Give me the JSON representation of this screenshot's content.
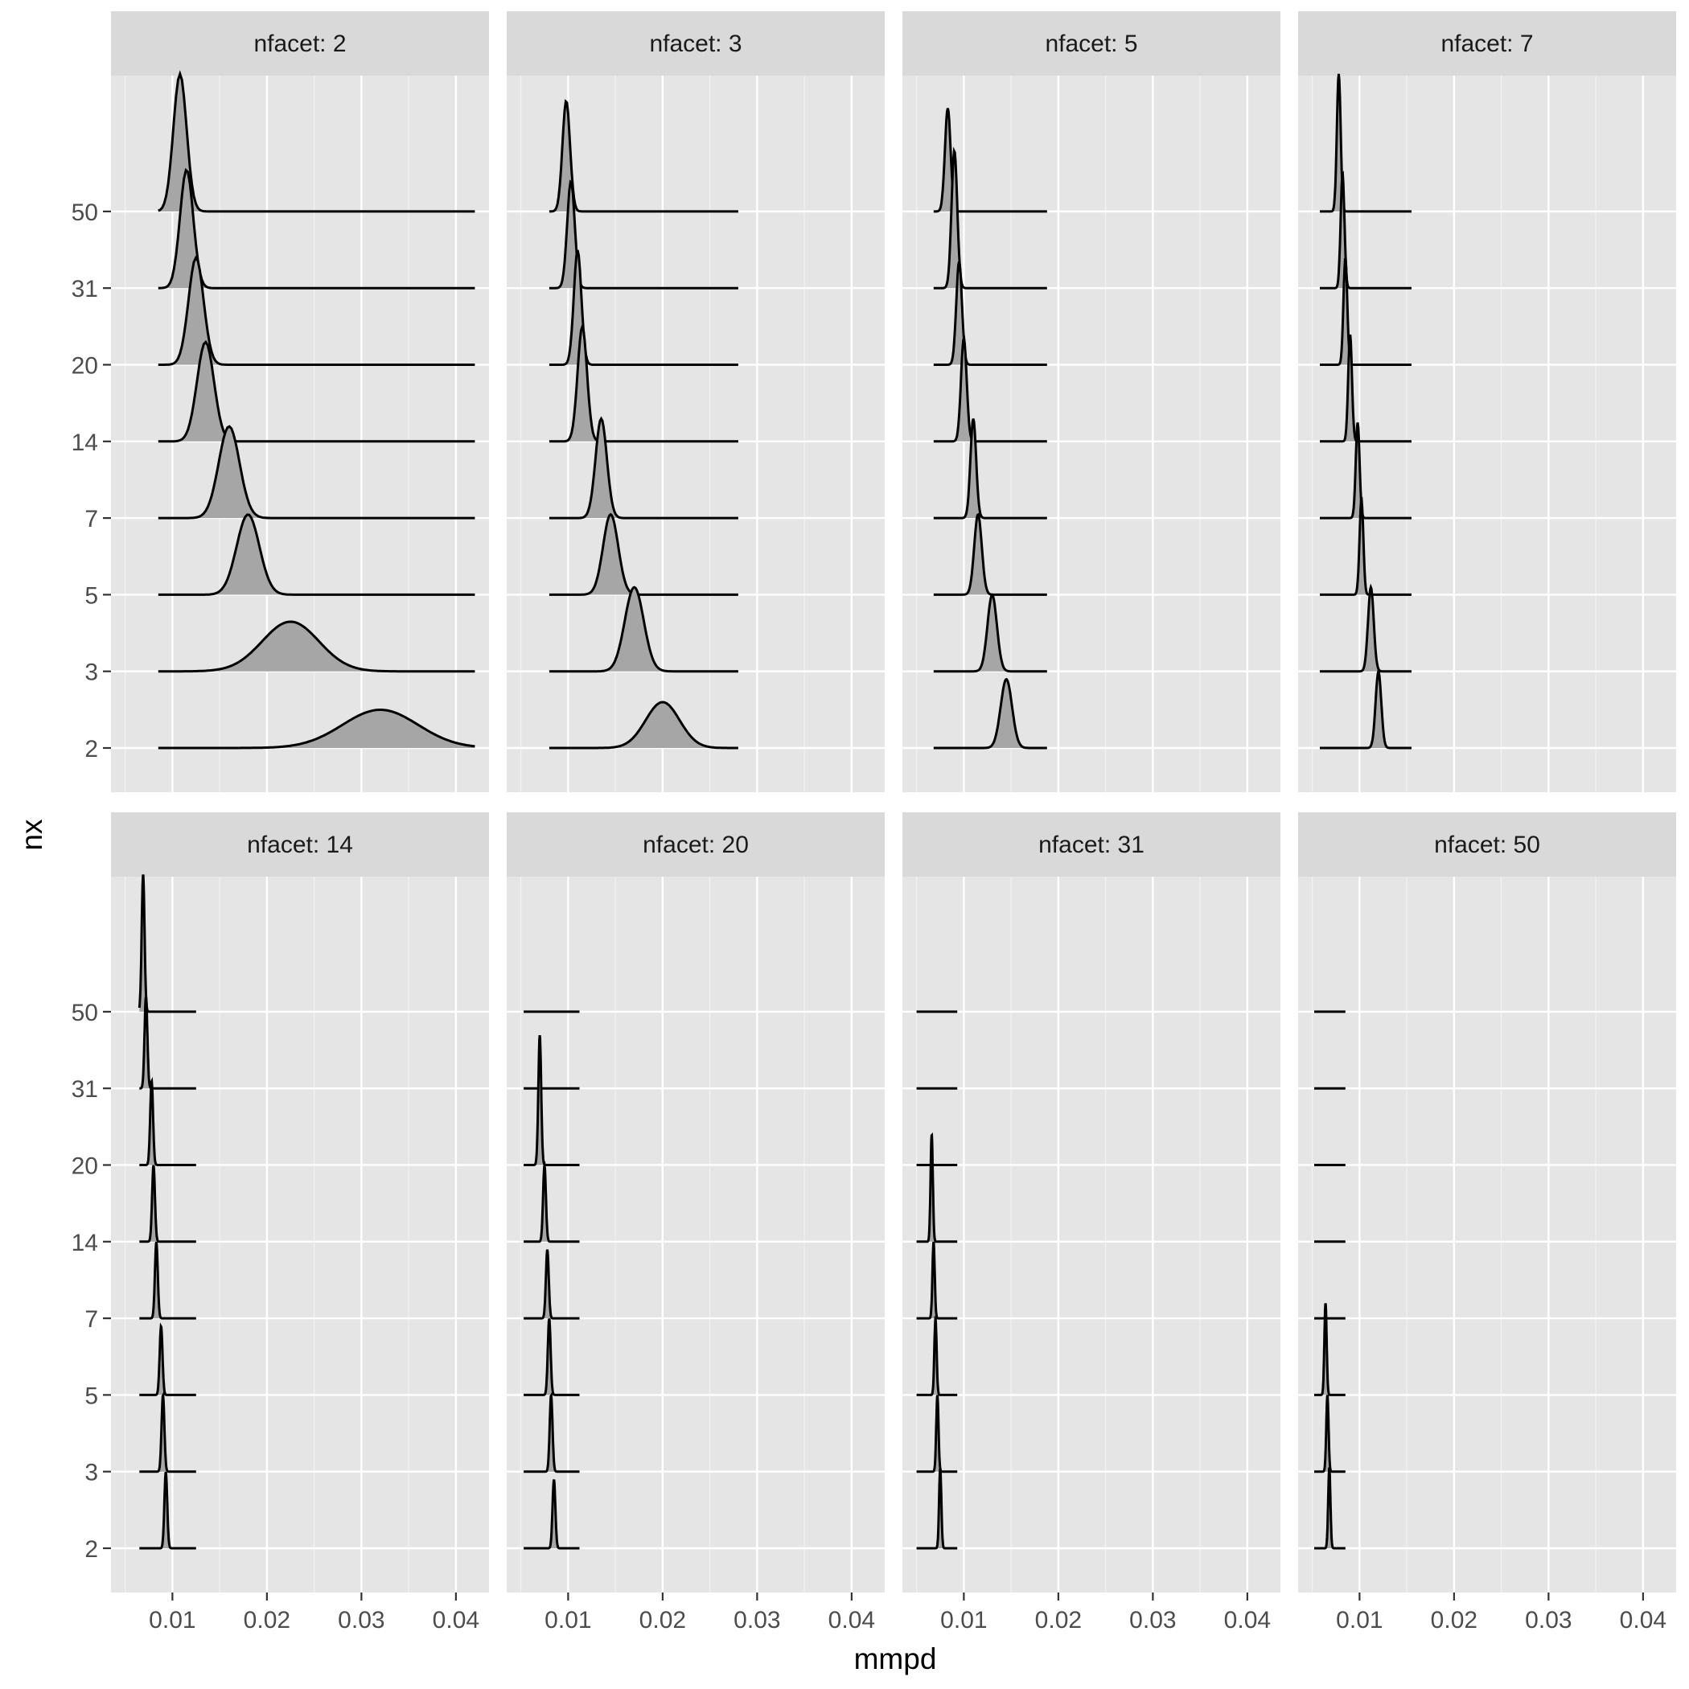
{
  "chart_data": {
    "type": "ridgeline",
    "facet_label_prefix": "nfacet: ",
    "xlabel": "mmpd",
    "ylabel": "nx",
    "xlim": [
      0.0035,
      0.0435
    ],
    "x_ticks": [
      0.01,
      0.02,
      0.03,
      0.04
    ],
    "x_tick_labels": [
      "0.01",
      "0.02",
      "0.03",
      "0.04"
    ],
    "y_levels": [
      "2",
      "3",
      "5",
      "7",
      "14",
      "20",
      "31",
      "50"
    ],
    "grid": true,
    "ridge_outline_color": "#000000",
    "ridge_fill_color": "#a6a6a6",
    "panel_background": "#e5e5e5",
    "strip_background": "#d9d9d9",
    "facets": [
      {
        "nfacet": "2",
        "range": [
          0.0085,
          0.042
        ],
        "ridges": [
          {
            "nx": "2",
            "peak": 0.032,
            "spread": 0.004,
            "height": 0.5,
            "opacity": 1
          },
          {
            "nx": "3",
            "peak": 0.0225,
            "spread": 0.003,
            "height": 0.65,
            "opacity": 1
          },
          {
            "nx": "5",
            "peak": 0.018,
            "spread": 0.0012,
            "height": 1.05,
            "opacity": 1
          },
          {
            "nx": "7",
            "peak": 0.016,
            "spread": 0.0011,
            "height": 1.2,
            "opacity": 1
          },
          {
            "nx": "14",
            "peak": 0.0135,
            "spread": 0.0009,
            "height": 1.3,
            "opacity": 1
          },
          {
            "nx": "20",
            "peak": 0.0125,
            "spread": 0.0008,
            "height": 1.4,
            "opacity": 1
          },
          {
            "nx": "31",
            "peak": 0.0115,
            "spread": 0.0007,
            "height": 1.55,
            "opacity": 1
          },
          {
            "nx": "50",
            "peak": 0.0108,
            "spread": 0.0007,
            "height": 1.8,
            "opacity": 1
          }
        ]
      },
      {
        "nfacet": "3",
        "range": [
          0.008,
          0.028
        ],
        "ridges": [
          {
            "nx": "2",
            "peak": 0.02,
            "spread": 0.0018,
            "height": 0.6,
            "opacity": 1
          },
          {
            "nx": "3",
            "peak": 0.017,
            "spread": 0.001,
            "height": 1.1,
            "opacity": 1
          },
          {
            "nx": "5",
            "peak": 0.0145,
            "spread": 0.0008,
            "height": 1.05,
            "opacity": 1
          },
          {
            "nx": "7",
            "peak": 0.0135,
            "spread": 0.0006,
            "height": 1.3,
            "opacity": 1
          },
          {
            "nx": "14",
            "peak": 0.0115,
            "spread": 0.0005,
            "height": 1.5,
            "opacity": 1
          },
          {
            "nx": "20",
            "peak": 0.011,
            "spread": 0.0004,
            "height": 1.5,
            "opacity": 1
          },
          {
            "nx": "31",
            "peak": 0.0103,
            "spread": 0.0004,
            "height": 1.4,
            "opacity": 1
          },
          {
            "nx": "50",
            "peak": 0.0098,
            "spread": 0.0004,
            "height": 1.45,
            "opacity": 1
          }
        ]
      },
      {
        "nfacet": "5",
        "range": [
          0.0068,
          0.0188
        ],
        "ridges": [
          {
            "nx": "2",
            "peak": 0.0145,
            "spread": 0.0006,
            "height": 0.9,
            "opacity": 1
          },
          {
            "nx": "3",
            "peak": 0.013,
            "spread": 0.0005,
            "height": 1.0,
            "opacity": 1
          },
          {
            "nx": "5",
            "peak": 0.0115,
            "spread": 0.0004,
            "height": 1.05,
            "opacity": 1
          },
          {
            "nx": "7",
            "peak": 0.011,
            "spread": 0.0003,
            "height": 1.3,
            "opacity": 1
          },
          {
            "nx": "14",
            "peak": 0.01,
            "spread": 0.0003,
            "height": 1.35,
            "opacity": 1
          },
          {
            "nx": "20",
            "peak": 0.0095,
            "spread": 0.0003,
            "height": 1.35,
            "opacity": 1
          },
          {
            "nx": "31",
            "peak": 0.009,
            "spread": 0.0003,
            "height": 1.8,
            "opacity": 1
          },
          {
            "nx": "50",
            "peak": 0.0083,
            "spread": 0.0003,
            "height": 1.35,
            "opacity": 1
          }
        ]
      },
      {
        "nfacet": "7",
        "range": [
          0.0058,
          0.0155
        ],
        "ridges": [
          {
            "nx": "2",
            "peak": 0.012,
            "spread": 0.0003,
            "height": 1.0,
            "opacity": 1
          },
          {
            "nx": "3",
            "peak": 0.0112,
            "spread": 0.0003,
            "height": 1.1,
            "opacity": 1
          },
          {
            "nx": "5",
            "peak": 0.0102,
            "spread": 0.0002,
            "height": 1.25,
            "opacity": 1
          },
          {
            "nx": "7",
            "peak": 0.0098,
            "spread": 0.0002,
            "height": 1.25,
            "opacity": 1
          },
          {
            "nx": "14",
            "peak": 0.009,
            "spread": 0.0002,
            "height": 1.4,
            "opacity": 1
          },
          {
            "nx": "20",
            "peak": 0.0085,
            "spread": 0.0002,
            "height": 1.4,
            "opacity": 1
          },
          {
            "nx": "31",
            "peak": 0.0082,
            "spread": 0.0002,
            "height": 1.5,
            "opacity": 1
          },
          {
            "nx": "50",
            "peak": 0.0078,
            "spread": 0.0002,
            "height": 1.8,
            "opacity": 1
          }
        ]
      },
      {
        "nfacet": "14",
        "range": [
          0.0065,
          0.0125
        ],
        "ridges": [
          {
            "nx": "2",
            "peak": 0.0093,
            "spread": 0.00015,
            "height": 1.0,
            "opacity": 1
          },
          {
            "nx": "3",
            "peak": 0.009,
            "spread": 0.00015,
            "height": 1.0,
            "opacity": 1
          },
          {
            "nx": "5",
            "peak": 0.0088,
            "spread": 0.00015,
            "height": 0.9,
            "opacity": 1
          },
          {
            "nx": "7",
            "peak": 0.0083,
            "spread": 0.00015,
            "height": 1.0,
            "opacity": 1
          },
          {
            "nx": "14",
            "peak": 0.008,
            "spread": 0.00015,
            "height": 1.0,
            "opacity": 1
          },
          {
            "nx": "20",
            "peak": 0.0078,
            "spread": 0.00015,
            "height": 1.1,
            "opacity": 1
          },
          {
            "nx": "31",
            "peak": 0.0072,
            "spread": 0.00015,
            "height": 1.2,
            "opacity": 1
          },
          {
            "nx": "50",
            "peak": 0.0069,
            "spread": 0.00015,
            "height": 1.8,
            "opacity": 1
          }
        ]
      },
      {
        "nfacet": "20",
        "range": [
          0.0053,
          0.0112
        ],
        "ridges": [
          {
            "nx": "2",
            "peak": 0.0085,
            "spread": 0.00015,
            "height": 0.9,
            "opacity": 1
          },
          {
            "nx": "3",
            "peak": 0.0082,
            "spread": 0.00015,
            "height": 1.0,
            "opacity": 1
          },
          {
            "nx": "5",
            "peak": 0.008,
            "spread": 0.00015,
            "height": 1.0,
            "opacity": 1
          },
          {
            "nx": "7",
            "peak": 0.0078,
            "spread": 0.00015,
            "height": 0.9,
            "opacity": 1
          },
          {
            "nx": "14",
            "peak": 0.0075,
            "spread": 0.00015,
            "height": 1.0,
            "opacity": 1
          },
          {
            "nx": "20",
            "peak": 0.007,
            "spread": 0.00015,
            "height": 1.7,
            "opacity": 1
          },
          {
            "nx": "31",
            "peak": 0.0068,
            "spread": 0.00015,
            "height": 0.0,
            "opacity": 0
          },
          {
            "nx": "50",
            "peak": 0.0066,
            "spread": 0.00015,
            "height": 0.0,
            "opacity": 0
          }
        ]
      },
      {
        "nfacet": "31",
        "range": [
          0.005,
          0.0093
        ],
        "ridges": [
          {
            "nx": "2",
            "peak": 0.0075,
            "spread": 0.00012,
            "height": 1.05,
            "opacity": 1
          },
          {
            "nx": "3",
            "peak": 0.0072,
            "spread": 0.00012,
            "height": 1.0,
            "opacity": 1
          },
          {
            "nx": "5",
            "peak": 0.007,
            "spread": 0.00012,
            "height": 1.0,
            "opacity": 1
          },
          {
            "nx": "7",
            "peak": 0.0068,
            "spread": 0.00012,
            "height": 1.0,
            "opacity": 1
          },
          {
            "nx": "14",
            "peak": 0.0066,
            "spread": 0.00012,
            "height": 1.4,
            "opacity": 1
          },
          {
            "nx": "20",
            "peak": 0.0065,
            "spread": 0.00012,
            "height": 0.0,
            "opacity": 0
          },
          {
            "nx": "31",
            "peak": 0.0064,
            "spread": 0.00012,
            "height": 0.0,
            "opacity": 0
          },
          {
            "nx": "50",
            "peak": 0.0063,
            "spread": 0.00012,
            "height": 0.0,
            "opacity": 0
          }
        ]
      },
      {
        "nfacet": "50",
        "range": [
          0.0052,
          0.0085
        ],
        "ridges": [
          {
            "nx": "2",
            "peak": 0.0068,
            "spread": 0.00012,
            "height": 1.05,
            "opacity": 1
          },
          {
            "nx": "3",
            "peak": 0.0066,
            "spread": 0.00012,
            "height": 1.0,
            "opacity": 1
          },
          {
            "nx": "5",
            "peak": 0.0064,
            "spread": 0.00012,
            "height": 1.2,
            "opacity": 1
          },
          {
            "nx": "7",
            "peak": 0.0062,
            "spread": 0.00012,
            "height": 0.0,
            "opacity": 0
          },
          {
            "nx": "14",
            "peak": 0.006,
            "spread": 0.00012,
            "height": 0.0,
            "opacity": 0
          },
          {
            "nx": "20",
            "peak": 0.006,
            "spread": 0.00012,
            "height": 0.0,
            "opacity": 0
          },
          {
            "nx": "31",
            "peak": 0.006,
            "spread": 0.00012,
            "height": 0.0,
            "opacity": 0
          },
          {
            "nx": "50",
            "peak": 0.006,
            "spread": 0.00012,
            "height": 0.0,
            "opacity": 0
          }
        ]
      }
    ]
  }
}
